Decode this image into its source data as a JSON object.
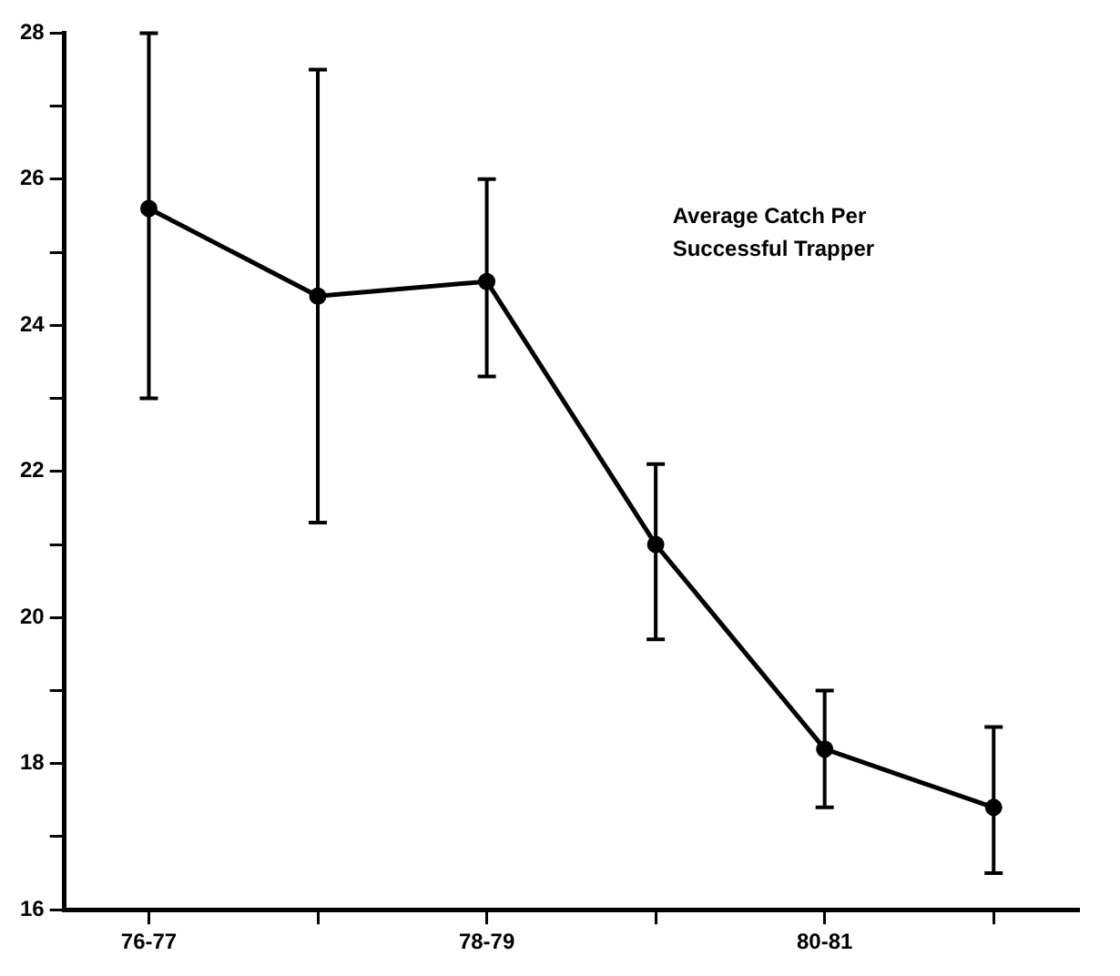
{
  "chart_data": {
    "type": "line",
    "categories": [
      "76-77",
      null,
      "78-79",
      null,
      "80-81",
      null
    ],
    "series": [
      {
        "color": "#000000",
        "values": [
          25.6,
          24.4,
          24.6,
          21.0,
          18.2,
          17.4
        ],
        "errors": [
          [
            23.0,
            28.0
          ],
          [
            21.3,
            27.5
          ],
          [
            23.3,
            26.0
          ],
          [
            19.7,
            22.1
          ],
          [
            17.4,
            19.0
          ],
          [
            16.5,
            18.5
          ]
        ]
      }
    ],
    "ylim": [
      16,
      28
    ],
    "yticks": [
      16,
      {
        "value": 17,
        "label": null
      },
      18,
      {
        "value": 19,
        "label": null
      },
      20,
      {
        "value": 21,
        "label": null
      },
      22,
      {
        "value": 23,
        "label": null
      },
      24,
      {
        "value": 25,
        "label": null
      },
      26,
      {
        "value": 27,
        "label": null
      },
      28
    ],
    "annotations": [
      "Average Catch Per Successful Trapper"
    ],
    "marker": "circle",
    "line_style": "solid",
    "grid": false,
    "legend": false
  }
}
